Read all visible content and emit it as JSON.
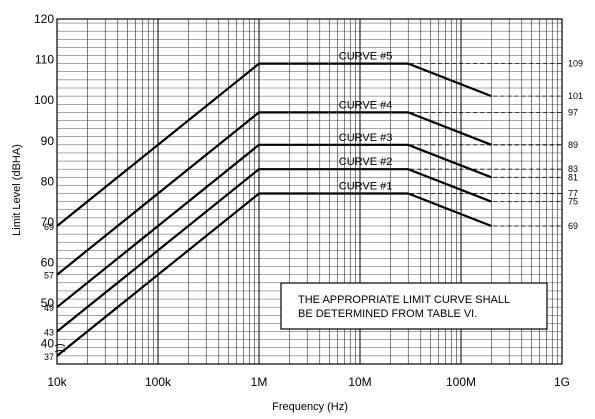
{
  "chart_data": {
    "type": "line",
    "title": "",
    "xlabel": "Frequency (Hz)",
    "ylabel": "Limit Level (dBHA)",
    "xscale": "log",
    "xlim": [
      10000,
      1000000000
    ],
    "ylim": [
      35,
      120
    ],
    "x_ticks": [
      10000,
      100000,
      1000000,
      10000000,
      100000000,
      1000000000
    ],
    "x_tick_labels": [
      "10k",
      "100k",
      "1M",
      "10M",
      "100M",
      "1G"
    ],
    "y_ticks": [
      40,
      50,
      60,
      70,
      80,
      90,
      100,
      110,
      120
    ],
    "y_tick_labels": [
      "40",
      "50",
      "60",
      "70",
      "80",
      "90",
      "100",
      "110",
      "120"
    ],
    "grid": true,
    "series": [
      {
        "name": "CURVE #1",
        "start_label": "37",
        "end_label": "69",
        "points": [
          [
            10000,
            37
          ],
          [
            1000000,
            77
          ],
          [
            30000000,
            77
          ],
          [
            200000000,
            69
          ]
        ]
      },
      {
        "name": "CURVE #2",
        "start_label": "43",
        "end_label": "75",
        "points": [
          [
            10000,
            43
          ],
          [
            1000000,
            83
          ],
          [
            30000000,
            83
          ],
          [
            200000000,
            75
          ]
        ]
      },
      {
        "name": "CURVE #3",
        "start_label": "49",
        "end_label": "81",
        "points": [
          [
            10000,
            49
          ],
          [
            1000000,
            89
          ],
          [
            30000000,
            89
          ],
          [
            200000000,
            81
          ]
        ]
      },
      {
        "name": "CURVE #4",
        "start_label": "57",
        "end_label": "89",
        "points": [
          [
            10000,
            57
          ],
          [
            1000000,
            97
          ],
          [
            30000000,
            97
          ],
          [
            200000000,
            89
          ]
        ]
      },
      {
        "name": "CURVE #5",
        "start_label": "69",
        "end_label": "101",
        "points": [
          [
            10000,
            69
          ],
          [
            1000000,
            109
          ],
          [
            30000000,
            109
          ],
          [
            200000000,
            101
          ]
        ]
      }
    ],
    "right_reference_labels": [
      "109",
      "101",
      "97",
      "89",
      "83",
      "81",
      "77",
      "75",
      "69"
    ],
    "annotation": [
      "THE APPROPRIATE LIMIT CURVE SHALL",
      "BE DETERMINED FROM TABLE VI."
    ]
  }
}
